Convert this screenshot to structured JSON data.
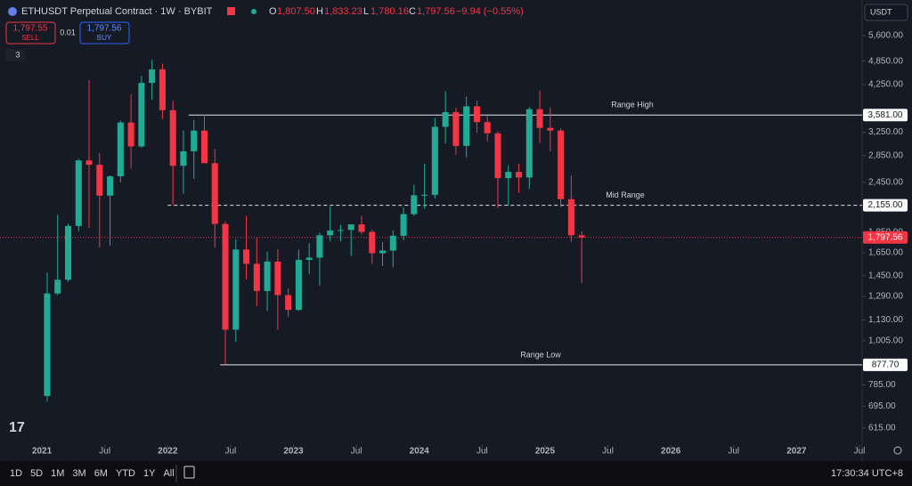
{
  "chart_data": {
    "type": "candlestick",
    "title": "ETHUSDT Perpetual Contract · 1W · BYBIT",
    "ohlc_header": {
      "o_label": "O",
      "o": "1,807.50",
      "h_label": "H",
      "h": "1,833.23",
      "l_label": "L",
      "l": "1,780.16",
      "c_label": "C",
      "c": "1,797.56",
      "change": "−9.94 (−0.55%)"
    },
    "x": [
      "2021-01",
      "2021-02",
      "2021-03",
      "2021-04",
      "2021-05",
      "2021-06",
      "2021-07",
      "2021-08",
      "2021-09",
      "2021-10",
      "2021-11",
      "2021-12",
      "2022-01",
      "2022-02",
      "2022-03",
      "2022-04",
      "2022-05",
      "2022-06",
      "2022-07",
      "2022-08",
      "2022-09",
      "2022-10",
      "2022-11",
      "2022-12",
      "2023-01",
      "2023-02",
      "2023-03",
      "2023-04",
      "2023-05",
      "2023-06",
      "2023-07",
      "2023-08",
      "2023-09",
      "2023-10",
      "2023-11",
      "2023-12",
      "2024-01",
      "2024-02",
      "2024-03",
      "2024-04",
      "2024-05",
      "2024-06",
      "2024-07",
      "2024-08",
      "2024-09",
      "2024-10",
      "2024-11",
      "2024-12",
      "2025-01",
      "2025-02",
      "2025-03",
      "2025-04"
    ],
    "open": [
      737,
      1312,
      1417,
      1918,
      2773,
      2707,
      2275,
      2536,
      3433,
      3000,
      4290,
      4630,
      3680,
      2690,
      2920,
      3280,
      2730,
      1940,
      1070,
      1680,
      1550,
      1330,
      1570,
      1300,
      1196,
      1585,
      1605,
      1820,
      1870,
      1875,
      1935,
      1855,
      1645,
      1670,
      1815,
      2050,
      2280,
      2285,
      3350,
      3640,
      3010,
      3760,
      3440,
      3230,
      2510,
      2600,
      2520,
      3700,
      3330,
      3280,
      2230,
      1820
    ],
    "high": [
      1476,
      2041,
      1943,
      2798,
      4366,
      2890,
      2550,
      3472,
      4027,
      4460,
      4891,
      4780,
      3880,
      3280,
      3480,
      3580,
      2960,
      1970,
      1780,
      2030,
      1790,
      1660,
      1680,
      1350,
      1680,
      1740,
      1850,
      2140,
      1930,
      1930,
      2030,
      1880,
      1750,
      1870,
      2130,
      2420,
      2720,
      3520,
      4090,
      3730,
      3970,
      3880,
      3560,
      3270,
      2700,
      2720,
      3740,
      4110,
      3740,
      3320,
      2550,
      1860
    ],
    "low": [
      714,
      1300,
      1400,
      1863,
      1900,
      1700,
      1717,
      2450,
      2650,
      2980,
      3900,
      3500,
      2160,
      2300,
      2500,
      2790,
      1700,
      880,
      1000,
      1420,
      1220,
      1190,
      1070,
      1150,
      1190,
      1460,
      1370,
      1760,
      1760,
      1620,
      1830,
      1550,
      1530,
      1520,
      1770,
      2030,
      2110,
      2240,
      3050,
      2860,
      2820,
      3240,
      3090,
      2120,
      2150,
      2310,
      2360,
      3060,
      2920,
      2130,
      1750,
      1390
    ],
    "close": [
      1312,
      1417,
      1918,
      2773,
      2707,
      2275,
      2536,
      3433,
      3000,
      4290,
      4630,
      3680,
      2690,
      2920,
      3280,
      2730,
      1940,
      1070,
      1680,
      1550,
      1330,
      1570,
      1300,
      1196,
      1585,
      1605,
      1820,
      1870,
      1875,
      1935,
      1855,
      1645,
      1670,
      1815,
      2050,
      2280,
      2285,
      3350,
      3640,
      3010,
      3760,
      3440,
      3230,
      2510,
      2600,
      2520,
      3700,
      3330,
      3280,
      2230,
      1820,
      1797.56
    ],
    "up_color": "#22ab94",
    "down_color": "#f23645",
    "log_scale": true,
    "ylim": [
      559,
      6840
    ],
    "yticks": [
      {
        "value": 5600,
        "label": "5,600.00"
      },
      {
        "value": 4850,
        "label": "4,850.00"
      },
      {
        "value": 4250,
        "label": "4,250.00"
      },
      {
        "value": 3250,
        "label": "3,250.00"
      },
      {
        "value": 2850,
        "label": "2,850.00"
      },
      {
        "value": 2450,
        "label": "2,450.00"
      },
      {
        "value": 1850,
        "label": "1,850.00"
      },
      {
        "value": 1650,
        "label": "1,650.00"
      },
      {
        "value": 1450,
        "label": "1,450.00"
      },
      {
        "value": 1290,
        "label": "1,290.00"
      },
      {
        "value": 1130,
        "label": "1,130.00"
      },
      {
        "value": 1005,
        "label": "1,005.00"
      },
      {
        "value": 785,
        "label": "785.00"
      },
      {
        "value": 695,
        "label": "695.00"
      },
      {
        "value": 615,
        "label": "615.00"
      }
    ],
    "xlim": [
      "2020-09",
      "2027-07"
    ],
    "xticks": [
      {
        "value": "2021-01",
        "label": "2021"
      },
      {
        "value": "2021-07",
        "label": "Jul"
      },
      {
        "value": "2022-01",
        "label": "2022"
      },
      {
        "value": "2022-07",
        "label": "Jul"
      },
      {
        "value": "2023-01",
        "label": "2023"
      },
      {
        "value": "2023-07",
        "label": "Jul"
      },
      {
        "value": "2024-01",
        "label": "2024"
      },
      {
        "value": "2024-07",
        "label": "Jul"
      },
      {
        "value": "2025-01",
        "label": "2025"
      },
      {
        "value": "2025-07",
        "label": "Jul"
      },
      {
        "value": "2026-01",
        "label": "2026"
      },
      {
        "value": "2026-07",
        "label": "Jul"
      },
      {
        "value": "2027-01",
        "label": "2027"
      },
      {
        "value": "2027-07",
        "label": "Jul"
      }
    ],
    "levels": [
      {
        "label": "Range High",
        "value": 3581,
        "value_label": "3,581.00",
        "start": "2022-03",
        "style": "solid"
      },
      {
        "label": "Mid Range",
        "value": 2155,
        "value_label": "2,155.00",
        "start": "2022-01",
        "style": "dashed"
      },
      {
        "label": "Range Low",
        "value": 877.7,
        "value_label": "877.70",
        "start": "2022-06",
        "style": "solid"
      }
    ],
    "last_price": 1797.56,
    "last_price_label": "1,797.56"
  },
  "trade": {
    "sell_price": "1,797.55",
    "sell": "SELL",
    "qty": "0.01",
    "buy_price": "1,797.56",
    "buy": "BUY",
    "indicators": "3",
    "currency": "USDT"
  },
  "toolbar": {
    "ranges": [
      "1D",
      "5D",
      "1M",
      "3M",
      "6M",
      "YTD",
      "1Y",
      "All"
    ],
    "time": "17:30:34 UTC+8"
  }
}
